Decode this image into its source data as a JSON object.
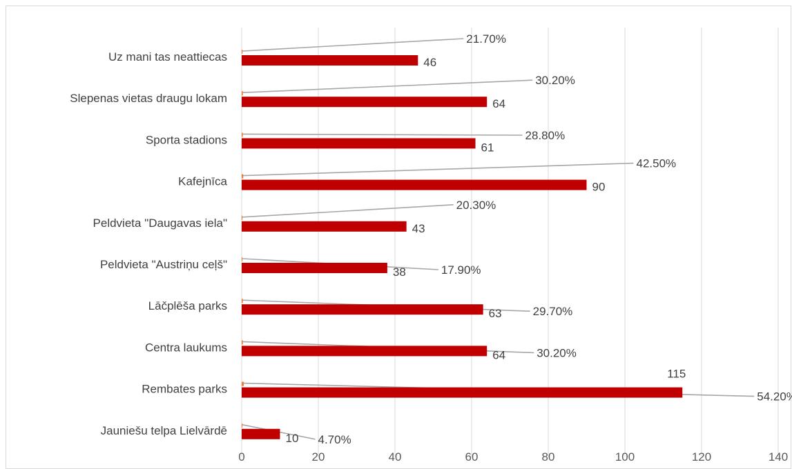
{
  "chart_data": {
    "type": "bar",
    "orientation": "horizontal",
    "categories": [
      "Uz mani tas neattiecas",
      "Slepenas vietas draugu lokam",
      "Sporta stadions",
      "Kafejnīca",
      "Peldvieta \"Daugavas iela\"",
      "Peldvieta \"Austriņu ceļš\"",
      "Lāčplēša parks",
      "Centra laukums",
      "Rembates parks",
      "Jauniešu telpa Lielvārdē"
    ],
    "series": [
      {
        "values": [
          46,
          64,
          61,
          90,
          43,
          38,
          63,
          64,
          115,
          10
        ],
        "color": "#c00000"
      },
      {
        "values": [
          0.217,
          0.302,
          0.288,
          0.425,
          0.203,
          0.179,
          0.297,
          0.302,
          0.542,
          0.047
        ],
        "color": "#ed7d31"
      }
    ],
    "count_labels": [
      "46",
      "64",
      "61",
      "90",
      "43",
      "38",
      "63",
      "64",
      "115",
      "10"
    ],
    "percent_labels": [
      "21.70%",
      "30.20%",
      "28.80%",
      "42.50%",
      "20.30%",
      "17.90%",
      "29.70%",
      "30.20%",
      "54.20%",
      "4.70%"
    ],
    "xlim": [
      0,
      140
    ],
    "x_ticks": [
      "0",
      "20",
      "40",
      "60",
      "80",
      "100",
      "120",
      "140"
    ],
    "grid": true,
    "gridline_color": "#d9d9d9",
    "leader_line_color": "#a6a6a6",
    "title": "",
    "xlabel": "",
    "ylabel": ""
  }
}
